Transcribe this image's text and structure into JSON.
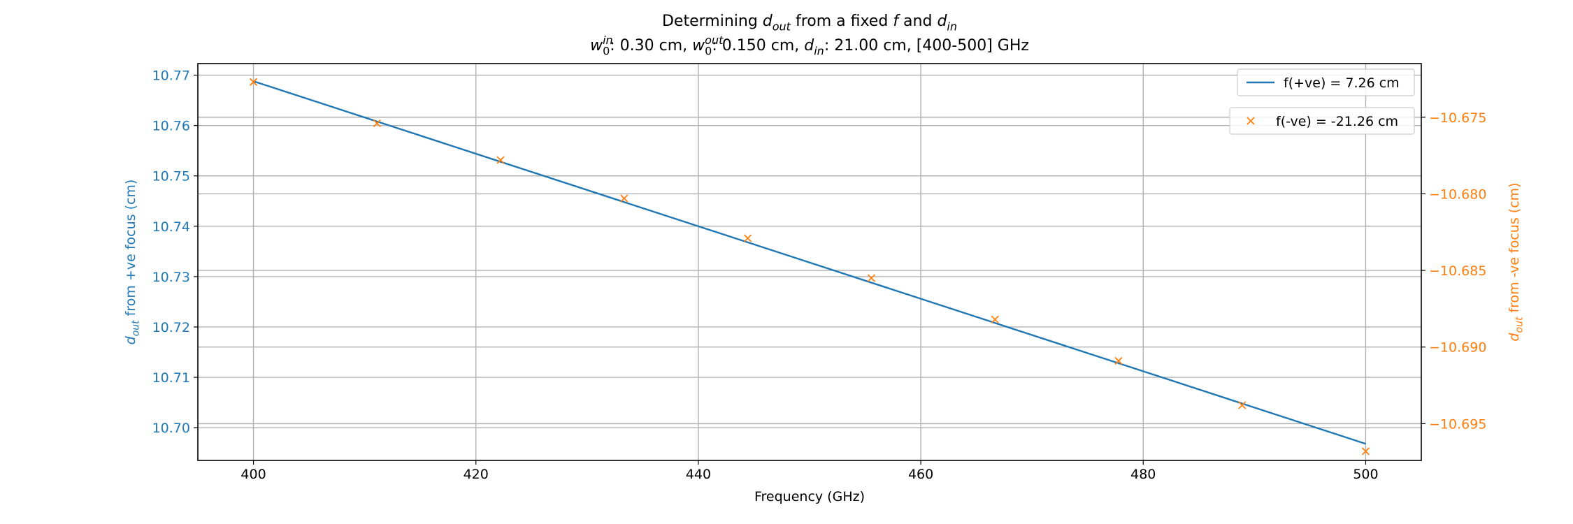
{
  "chart_data": {
    "type": "line",
    "title": {
      "line1": [
        {
          "t": "Determining "
        },
        {
          "t": "d",
          "i": true
        },
        {
          "t": "out",
          "i": true,
          "sub": true
        },
        {
          "t": " from a fixed "
        },
        {
          "t": "f",
          "i": true
        },
        {
          "t": " and "
        },
        {
          "t": "d",
          "i": true
        },
        {
          "t": "in",
          "i": true,
          "sub": true
        }
      ],
      "line2": [
        {
          "t": "w",
          "i": true
        },
        {
          "t": "in",
          "i": true,
          "sup": true
        },
        {
          "t": "0",
          "sub": true,
          "under": true
        },
        {
          "t": ": 0.30 cm, "
        },
        {
          "t": "w",
          "i": true
        },
        {
          "t": "out",
          "i": true,
          "sup": true
        },
        {
          "t": "0",
          "sub": true,
          "under": true
        },
        {
          "t": ": 0.150 cm, "
        },
        {
          "t": "d",
          "i": true
        },
        {
          "t": "in",
          "i": true,
          "sub": true
        },
        {
          "t": ": 21.00 cm, [400-500] GHz"
        }
      ]
    },
    "xlabel": "Frequency (GHz)",
    "ylabel_left": [
      {
        "t": "d",
        "i": true
      },
      {
        "t": "out",
        "i": true,
        "sub": true
      },
      {
        "t": " from +ve focus (cm)"
      }
    ],
    "ylabel_right": [
      {
        "t": "d",
        "i": true
      },
      {
        "t": "out",
        "i": true,
        "sub": true
      },
      {
        "t": " from -ve focus (cm)"
      }
    ],
    "xlim": [
      395,
      505
    ],
    "ylim_left": [
      10.6935,
      10.7723
    ],
    "ylim_right": [
      -10.6974,
      -10.6715
    ],
    "xticks": [
      "400",
      "420",
      "440",
      "460",
      "480",
      "500"
    ],
    "yticks_left": [
      "10.70",
      "10.71",
      "10.72",
      "10.73",
      "10.74",
      "10.75",
      "10.76",
      "10.77"
    ],
    "yticks_right": [
      "−10.675",
      "−10.680",
      "−10.685",
      "−10.690",
      "−10.695"
    ],
    "grid": true,
    "legend_placement": "top-right",
    "series": [
      {
        "name": "f(+ve) = 7.26 cm",
        "axis": "left",
        "style": "line",
        "color": "#1f77b4",
        "x": [
          400,
          411.11,
          422.22,
          433.33,
          444.44,
          455.56,
          466.67,
          477.78,
          488.89,
          500
        ],
        "y": [
          10.7688,
          10.7608,
          10.7528,
          10.7448,
          10.7368,
          10.7288,
          10.7208,
          10.7128,
          10.7048,
          10.6968
        ]
      },
      {
        "name": "f(-ve) = -21.26 cm",
        "axis": "right",
        "style": "marker-x",
        "color": "#ff7f0e",
        "x": [
          400,
          411.11,
          422.22,
          433.33,
          444.44,
          455.56,
          466.67,
          477.78,
          488.89,
          500
        ],
        "y": [
          -10.6727,
          -10.6754,
          -10.6778,
          -10.6803,
          -10.6829,
          -10.6855,
          -10.6882,
          -10.6909,
          -10.6938,
          -10.6968
        ]
      }
    ]
  },
  "colors": {
    "left_axis": "#1f77b4",
    "right_axis": "#ff7f0e",
    "grid": "#b0b0b0",
    "text": "#000000"
  }
}
